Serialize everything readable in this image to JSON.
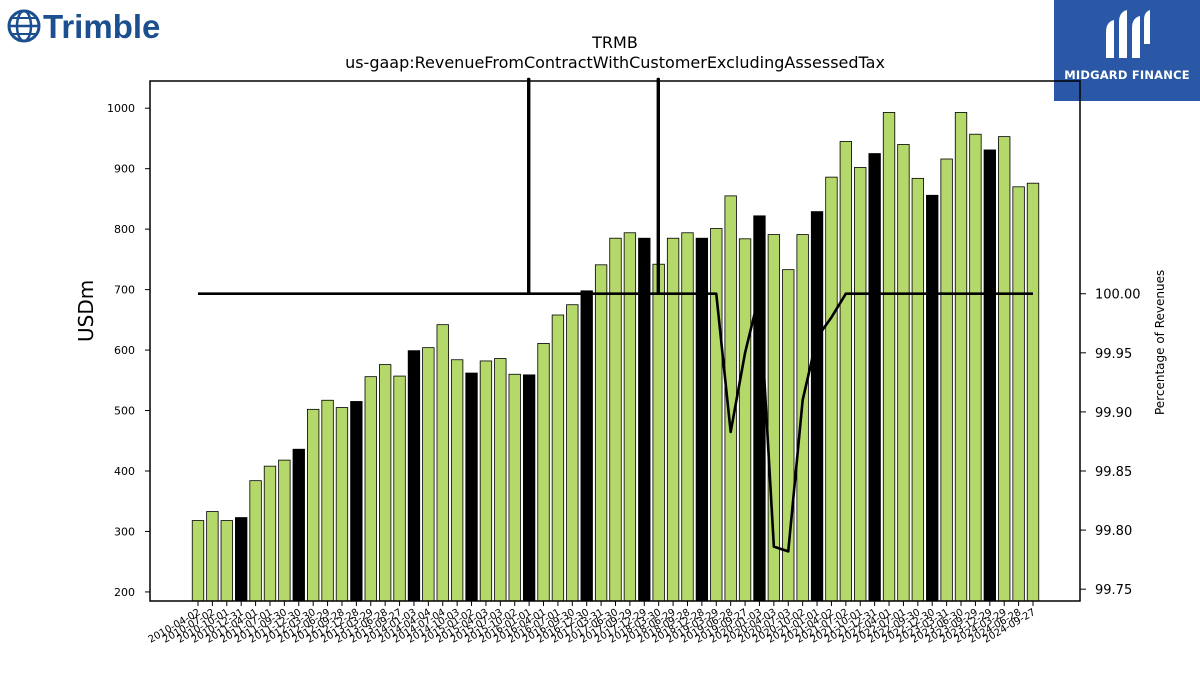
{
  "branding": {
    "left_logo_text": "Trimble",
    "right_logo_text": "MIDGARD FINANCE",
    "left_logo_color": "#1b4f8f",
    "right_logo_bg": "#2a58a6"
  },
  "chart_data": {
    "type": "bar",
    "title": "TRMB",
    "subtitle": "us-gaap:RevenueFromContractWithCustomerExcludingAssessedTax",
    "ylabel": "USDm",
    "y2label": "Percentage of Revenues",
    "ylim": [
      185,
      1045
    ],
    "y2lim": [
      99.74,
      100.18
    ],
    "yticks": [
      200,
      300,
      400,
      500,
      600,
      700,
      800,
      900,
      1000
    ],
    "y2ticks": [
      "99.75",
      "99.80",
      "99.85",
      "99.90",
      "99.95",
      "100.00"
    ],
    "bar_colors": {
      "quarter": "#b5d86b",
      "fiscal_year_end": "#000000"
    },
    "line_color": "#000000",
    "grid": false,
    "x": [
      "2010-04-02",
      "2010-07-02",
      "2010-10-01",
      "2010-12-31",
      "2011-04-01",
      "2011-07-01",
      "2011-09-30",
      "2011-12-30",
      "2012-03-30",
      "2012-06-29",
      "2012-09-28",
      "2012-12-28",
      "2013-03-29",
      "2013-06-28",
      "2013-09-27",
      "2014-01-03",
      "2014-04-04",
      "2014-07-04",
      "2014-10-03",
      "2015-01-02",
      "2015-04-03",
      "2015-07-03",
      "2015-10-02",
      "2016-01-01",
      "2016-04-01",
      "2016-07-01",
      "2016-09-30",
      "2016-12-30",
      "2017-03-31",
      "2017-06-30",
      "2017-09-29",
      "2017-12-29",
      "2018-03-30",
      "2018-06-29",
      "2018-09-28",
      "2018-12-28",
      "2019-03-29",
      "2019-06-28",
      "2019-09-27",
      "2020-01-03",
      "2020-04-03",
      "2020-07-03",
      "2020-10-02",
      "2021-01-01",
      "2021-04-02",
      "2021-07-02",
      "2021-10-01",
      "2021-12-31",
      "2022-04-01",
      "2022-07-01",
      "2022-09-30",
      "2022-12-30",
      "2023-03-31",
      "2023-06-30",
      "2023-09-29",
      "2023-12-29",
      "2024-03-29",
      "2024-06-28",
      "2024-09-27"
    ],
    "series": [
      {
        "values": [
          318,
          333,
          318,
          323,
          384,
          408,
          418,
          436,
          502,
          517,
          505,
          515,
          556,
          576,
          557,
          599,
          604,
          642,
          584,
          562,
          582,
          586,
          560,
          559,
          611,
          658,
          675,
          698,
          741,
          785,
          794,
          785,
          742,
          785,
          794,
          785,
          801,
          855,
          784,
          822,
          791,
          733,
          791,
          829,
          886,
          945,
          902,
          925,
          993,
          940,
          884,
          856,
          916,
          993,
          957,
          931,
          953,
          870,
          876
        ]
      },
      {
        "values": [
          100.0,
          100.0,
          100.0,
          100.0,
          100.0,
          100.0,
          100.0,
          100.0,
          100.0,
          100.0,
          100.0,
          100.0,
          100.0,
          100.0,
          100.0,
          100.0,
          100.0,
          100.0,
          100.0,
          100.0,
          100.0,
          100.0,
          100.0,
          100.0,
          100.0,
          100.0,
          100.0,
          100.0,
          100.0,
          100.0,
          100.0,
          100.0,
          100.0,
          100.0,
          100.0,
          100.0,
          100.0,
          99.883,
          99.95,
          100.0,
          99.786,
          99.782,
          99.91,
          99.963,
          99.98,
          100.0,
          100.0,
          100.0,
          100.0,
          100.0,
          100.0,
          100.0,
          100.0,
          100.0,
          100.0,
          100.0,
          100.0,
          100.0,
          100.0
        ],
        "spikes_to_top_at": [
          "2016-01-01",
          "2018-03-30"
        ]
      }
    ],
    "fiscal_year_end_dates": [
      "2010-12-31",
      "2011-12-30",
      "2012-12-28",
      "2014-01-03",
      "2015-01-02",
      "2016-01-01",
      "2016-12-30",
      "2017-12-29",
      "2018-12-28",
      "2020-01-03",
      "2021-01-01",
      "2021-12-31",
      "2022-12-30",
      "2023-12-29"
    ]
  }
}
